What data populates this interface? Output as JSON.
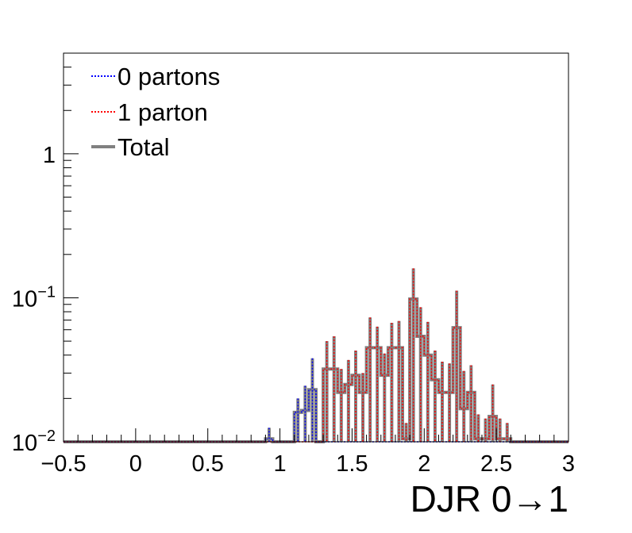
{
  "chart_data": {
    "type": "line",
    "title": "",
    "xlabel": "DJR 0→1",
    "ylabel": "",
    "xlim": [
      -0.5,
      3
    ],
    "ylim": [
      0.01,
      5
    ],
    "yscale": "log",
    "grid": false,
    "legend_position": "top-left",
    "bin_width": 0.05,
    "x_ticks": [
      -0.5,
      0,
      0.5,
      1,
      1.5,
      2,
      2.5,
      3
    ],
    "x_tick_labels": [
      "−0.5",
      "0",
      "0.5",
      "1",
      "1.5",
      "2",
      "2.5",
      "3"
    ],
    "y_ticks": [
      {
        "value": 0.01,
        "base": "10",
        "exp": "−2"
      },
      {
        "value": 0.1,
        "base": "10",
        "exp": "−1"
      },
      {
        "value": 1,
        "base": "1",
        "exp": ""
      }
    ],
    "series": [
      {
        "name": "0 partons",
        "color": "#0000ff",
        "style": "dotted",
        "bins": [
          {
            "x": 0.9,
            "value": 0.0105,
            "err": 0.002
          },
          {
            "x": 1.1,
            "value": 0.016,
            "err": 0.004
          },
          {
            "x": 1.15,
            "value": 0.0165,
            "err": 0.008
          },
          {
            "x": 1.2,
            "value": 0.023,
            "err": 0.015
          }
        ]
      },
      {
        "name": "1 parton",
        "color": "#ff0000",
        "style": "dotted",
        "bins": [
          {
            "x": 1.3,
            "value": 0.032,
            "err": 0.018
          },
          {
            "x": 1.35,
            "value": 0.032,
            "err": 0.022
          },
          {
            "x": 1.4,
            "value": 0.022,
            "err": 0.01
          },
          {
            "x": 1.45,
            "value": 0.025,
            "err": 0.012
          },
          {
            "x": 1.5,
            "value": 0.029,
            "err": 0.014
          },
          {
            "x": 1.55,
            "value": 0.022,
            "err": 0.008
          },
          {
            "x": 1.6,
            "value": 0.045,
            "err": 0.028
          },
          {
            "x": 1.65,
            "value": 0.045,
            "err": 0.018
          },
          {
            "x": 1.7,
            "value": 0.029,
            "err": 0.012
          },
          {
            "x": 1.75,
            "value": 0.045,
            "err": 0.022
          },
          {
            "x": 1.8,
            "value": 0.045,
            "err": 0.024
          },
          {
            "x": 1.85,
            "value": 0.0105,
            "err": 0.003
          },
          {
            "x": 1.9,
            "value": 0.098,
            "err": 0.062
          },
          {
            "x": 1.95,
            "value": 0.054,
            "err": 0.032
          },
          {
            "x": 2.0,
            "value": 0.04,
            "err": 0.028
          },
          {
            "x": 2.05,
            "value": 0.027,
            "err": 0.016
          },
          {
            "x": 2.1,
            "value": 0.022,
            "err": 0.014
          },
          {
            "x": 2.15,
            "value": 0.022,
            "err": 0.013
          },
          {
            "x": 2.2,
            "value": 0.062,
            "err": 0.05
          },
          {
            "x": 2.25,
            "value": 0.017,
            "err": 0.014
          },
          {
            "x": 2.3,
            "value": 0.022,
            "err": 0.012
          },
          {
            "x": 2.35,
            "value": 0.0105,
            "err": 0.005
          },
          {
            "x": 2.4,
            "value": 0.0105,
            "err": 0.004
          },
          {
            "x": 2.45,
            "value": 0.015,
            "err": 0.01
          },
          {
            "x": 2.5,
            "value": 0.0105,
            "err": 0.004
          },
          {
            "x": 2.55,
            "value": 0.0105,
            "err": 0.003
          }
        ]
      },
      {
        "name": "Total",
        "color": "#808080",
        "style": "solid"
      }
    ]
  }
}
